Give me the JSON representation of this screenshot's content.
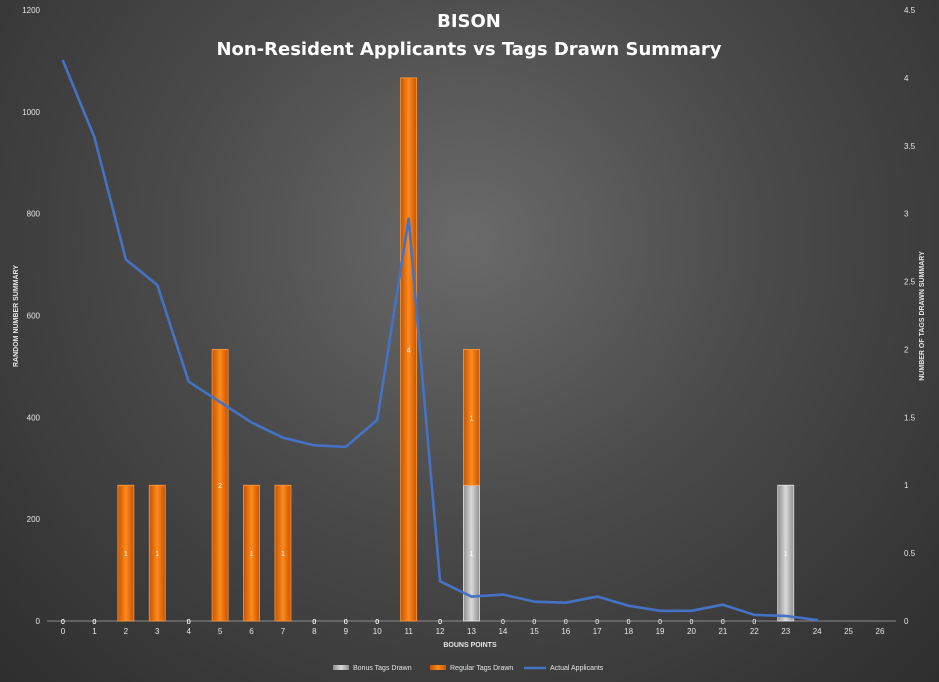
{
  "chart_data": {
    "type": "bar",
    "title": "BISON",
    "subtitle": "Non-Resident Applicants vs Tags Drawn Summary",
    "xlabel": "BOUNS POINTS",
    "ylabel_left": "RANDOM NUMBER SUMMARY",
    "ylabel_right": "NUMBER OF TAGS DRAWN SUMMARY",
    "categories": [
      "0",
      "1",
      "2",
      "3",
      "4",
      "5",
      "6",
      "7",
      "8",
      "9",
      "10",
      "11",
      "12",
      "13",
      "14",
      "15",
      "16",
      "17",
      "18",
      "19",
      "20",
      "21",
      "22",
      "23",
      "24",
      "25",
      "26"
    ],
    "ylim_left": [
      0,
      1200
    ],
    "yticks_left": [
      "0",
      "200",
      "400",
      "600",
      "800",
      "1000",
      "1200"
    ],
    "ylim_right": [
      0,
      4.5
    ],
    "yticks_right": [
      "0",
      "0.5",
      "1",
      "1.5",
      "2",
      "2.5",
      "3",
      "3.5",
      "4",
      "4.5"
    ],
    "stacked": true,
    "series": [
      {
        "name": "Bonus Tags Drawn",
        "axis": "right",
        "color": "#bdbdbd",
        "values": [
          0,
          0,
          0,
          0,
          0,
          0,
          0,
          0,
          0,
          0,
          0,
          0,
          0,
          1,
          0,
          0,
          0,
          0,
          0,
          0,
          0,
          0,
          0,
          1,
          null,
          null,
          null
        ],
        "labels": [
          "0",
          "0",
          "",
          "",
          "0",
          "",
          "",
          "",
          "0",
          "0",
          "0",
          "",
          "0",
          "1",
          "0",
          "0",
          "0",
          "0",
          "0",
          "0",
          "0",
          "0",
          "0",
          "1",
          "",
          "",
          ""
        ]
      },
      {
        "name": "Regular Tags Drawn",
        "axis": "right",
        "color": "#f0700a",
        "values": [
          0,
          0,
          1,
          1,
          0,
          2,
          1,
          1,
          0,
          0,
          0,
          4,
          0,
          1,
          0,
          0,
          0,
          0,
          0,
          0,
          0,
          0,
          0,
          0,
          null,
          null,
          null
        ],
        "labels": [
          "0",
          "0",
          "1",
          "1",
          "0",
          "2",
          "1",
          "1",
          "0",
          "0",
          "0",
          "4",
          "0",
          "1",
          "",
          "",
          "",
          "",
          "",
          "",
          "",
          "",
          "",
          "",
          "",
          "",
          ""
        ]
      },
      {
        "name": "Actual Applicants",
        "axis": "left",
        "type": "line",
        "color": "#4472c4",
        "values": [
          1100,
          950,
          710,
          660,
          470,
          430,
          390,
          360,
          345,
          342,
          395,
          790,
          78,
          48,
          52,
          38,
          36,
          48,
          30,
          20,
          20,
          32,
          12,
          10,
          2,
          null,
          null
        ]
      }
    ],
    "legend": "bottom",
    "grid": false
  }
}
